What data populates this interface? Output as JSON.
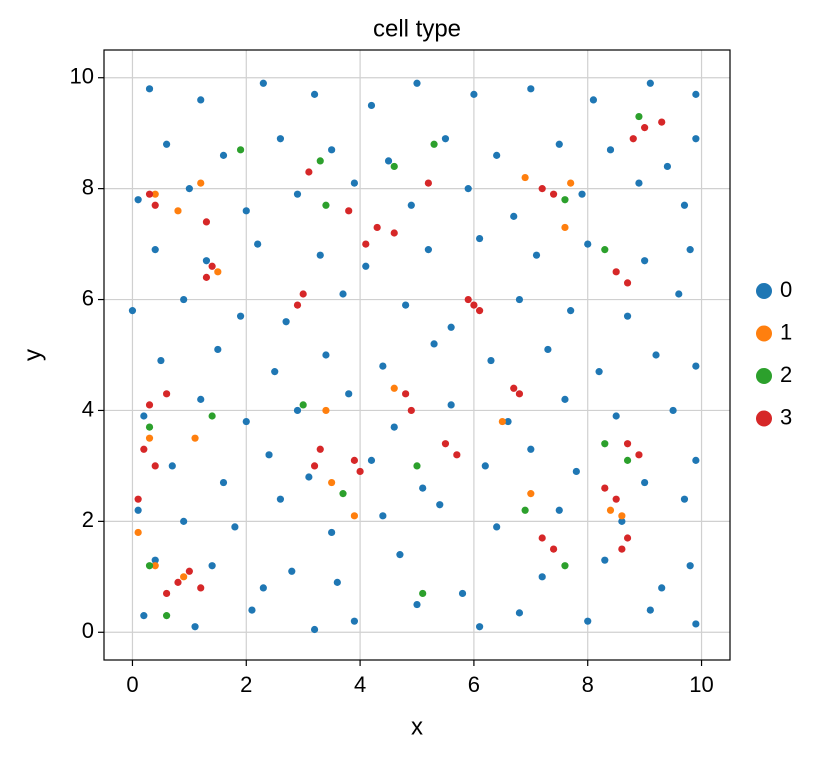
{
  "chart_data": {
    "type": "scatter",
    "title": "cell type",
    "x_label": "x",
    "y_label": "y",
    "xlim": [
      -0.5,
      10.5
    ],
    "ylim": [
      -0.5,
      10.5
    ],
    "xticks": [
      0,
      2,
      4,
      6,
      8,
      10
    ],
    "yticks": [
      0,
      2,
      4,
      6,
      8,
      10
    ],
    "grid": true,
    "legend": "right",
    "series": [
      {
        "name": "0",
        "color": "#1f77b4",
        "x": [
          0.2,
          1.1,
          2.1,
          3.2,
          3.9,
          5.0,
          6.1,
          6.8,
          8.0,
          9.1,
          9.9,
          0.4,
          1.4,
          2.3,
          2.8,
          3.6,
          4.7,
          5.8,
          7.2,
          8.3,
          9.3,
          9.8,
          0.1,
          0.9,
          1.8,
          2.6,
          3.5,
          4.4,
          5.4,
          6.4,
          7.5,
          8.6,
          9.7,
          0.7,
          1.6,
          2.4,
          3.1,
          4.2,
          5.1,
          6.2,
          7.0,
          7.8,
          9.0,
          9.9,
          0.2,
          1.2,
          2.0,
          2.9,
          3.8,
          4.6,
          5.6,
          6.6,
          7.6,
          8.5,
          9.5,
          0.5,
          1.5,
          2.5,
          3.4,
          4.4,
          5.3,
          6.3,
          7.3,
          8.2,
          9.2,
          9.9,
          0.0,
          0.9,
          1.9,
          2.7,
          3.7,
          4.8,
          5.6,
          6.8,
          7.7,
          8.7,
          9.6,
          0.4,
          1.3,
          2.2,
          3.3,
          4.1,
          5.2,
          6.1,
          7.1,
          8.0,
          9.0,
          9.8,
          0.1,
          1.0,
          2.0,
          2.9,
          3.9,
          4.9,
          5.9,
          6.7,
          7.9,
          8.9,
          9.7,
          0.6,
          1.6,
          2.6,
          3.5,
          4.5,
          5.5,
          6.4,
          7.5,
          8.4,
          9.4,
          9.9,
          0.3,
          1.2,
          2.3,
          3.2,
          4.2,
          5.0,
          6.0,
          7.0,
          8.1,
          9.1,
          9.9
        ],
        "y": [
          0.3,
          0.1,
          0.4,
          0.05,
          0.2,
          0.5,
          0.1,
          0.35,
          0.2,
          0.4,
          0.15,
          1.3,
          1.2,
          0.8,
          1.1,
          0.9,
          1.4,
          0.7,
          1.0,
          1.3,
          0.8,
          1.2,
          2.2,
          2.0,
          1.9,
          2.4,
          1.8,
          2.1,
          2.3,
          1.9,
          2.2,
          2.0,
          2.4,
          3.0,
          2.7,
          3.2,
          2.8,
          3.1,
          2.6,
          3.0,
          3.3,
          2.9,
          2.7,
          3.1,
          3.9,
          4.2,
          3.8,
          4.0,
          4.3,
          3.7,
          4.1,
          3.8,
          4.2,
          3.9,
          4.0,
          4.9,
          5.1,
          4.7,
          5.0,
          4.8,
          5.2,
          4.9,
          5.1,
          4.7,
          5.0,
          4.8,
          5.8,
          6.0,
          5.7,
          5.6,
          6.1,
          5.9,
          5.5,
          6.0,
          5.8,
          5.7,
          6.1,
          6.9,
          6.7,
          7.0,
          6.8,
          6.6,
          6.9,
          7.1,
          6.8,
          7.0,
          6.7,
          6.9,
          7.8,
          8.0,
          7.6,
          7.9,
          8.1,
          7.7,
          8.0,
          7.5,
          7.9,
          8.1,
          7.7,
          8.8,
          8.6,
          8.9,
          8.7,
          8.5,
          8.9,
          8.6,
          8.8,
          8.7,
          8.4,
          8.9,
          9.8,
          9.6,
          9.9,
          9.7,
          9.5,
          9.9,
          9.7,
          9.8,
          9.6,
          9.9,
          9.7
        ]
      },
      {
        "name": "1",
        "color": "#ff7f0e",
        "x": [
          0.1,
          0.4,
          0.9,
          0.3,
          1.1,
          1.5,
          0.4,
          0.8,
          3.4,
          3.5,
          3.9,
          4.6,
          6.5,
          7.6,
          7.7,
          8.4,
          8.6,
          6.9,
          7.0,
          1.2
        ],
        "y": [
          1.8,
          1.2,
          1.0,
          3.5,
          3.5,
          6.5,
          7.9,
          7.6,
          4.0,
          2.7,
          2.1,
          4.4,
          3.8,
          7.3,
          8.1,
          2.2,
          2.1,
          8.2,
          2.5,
          8.1
        ]
      },
      {
        "name": "2",
        "color": "#2ca02c",
        "x": [
          0.3,
          0.6,
          0.3,
          1.4,
          3.3,
          3.4,
          3.7,
          3.0,
          5.3,
          5.0,
          5.1,
          6.9,
          7.6,
          7.6,
          8.3,
          8.3,
          8.7,
          8.9,
          1.9,
          4.6
        ],
        "y": [
          1.2,
          0.3,
          3.7,
          3.9,
          8.5,
          7.7,
          2.5,
          4.1,
          8.8,
          3.0,
          0.7,
          2.2,
          7.8,
          1.2,
          6.9,
          3.4,
          3.1,
          9.3,
          8.7,
          8.4
        ]
      },
      {
        "name": "3",
        "color": "#d62728",
        "x": [
          0.8,
          1.0,
          0.6,
          1.2,
          0.2,
          0.4,
          0.3,
          0.6,
          3.3,
          3.2,
          3.9,
          4.0,
          4.8,
          4.9,
          5.5,
          5.7,
          5.9,
          6.1,
          6.0,
          6.7,
          6.8,
          7.2,
          7.4,
          8.3,
          8.5,
          8.7,
          8.9,
          8.7,
          8.6,
          3.0,
          2.9,
          1.4,
          1.3,
          0.3,
          0.4,
          1.3,
          4.3,
          4.6,
          4.1,
          3.8,
          7.2,
          7.4,
          8.5,
          8.7,
          9.0,
          9.3,
          8.8,
          3.1,
          5.2,
          0.1
        ],
        "y": [
          0.9,
          1.1,
          0.7,
          0.8,
          3.3,
          3.0,
          4.1,
          4.3,
          3.3,
          3.0,
          3.1,
          2.9,
          4.3,
          4.0,
          3.4,
          3.2,
          6.0,
          5.8,
          5.9,
          4.4,
          4.3,
          1.7,
          1.5,
          2.6,
          2.4,
          3.4,
          3.2,
          1.7,
          1.5,
          6.1,
          5.9,
          6.6,
          6.4,
          7.9,
          7.7,
          7.4,
          7.3,
          7.2,
          7.0,
          7.6,
          8.0,
          7.9,
          6.5,
          6.3,
          9.1,
          9.2,
          8.9,
          8.3,
          8.1,
          2.4
        ]
      }
    ]
  }
}
